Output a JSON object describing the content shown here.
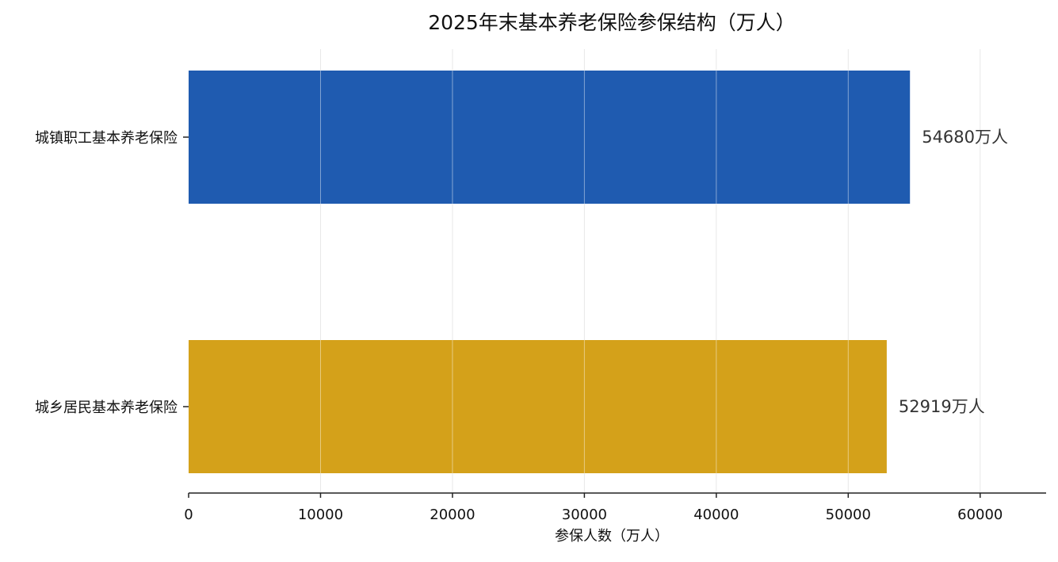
{
  "chart_data": {
    "type": "bar",
    "orientation": "horizontal",
    "title": "2025年末基本养老保险参保结构（万人）",
    "xlabel": "参保人数（万人）",
    "ylabel": "",
    "categories": [
      "城镇职工基本养老保险",
      "城乡居民基本养老保险"
    ],
    "values": [
      54680,
      52919
    ],
    "data_labels": [
      "54680万人",
      "52919万人"
    ],
    "colors": [
      "#1f5bb0",
      "#d4a11a"
    ],
    "xlim": [
      0,
      65000
    ],
    "xticks": [
      0,
      10000,
      20000,
      30000,
      40000,
      50000,
      60000
    ],
    "xtick_labels": [
      "0",
      "10000",
      "20000",
      "30000",
      "40000",
      "50000",
      "60000"
    ],
    "grid": "vertical",
    "legend": "none"
  }
}
